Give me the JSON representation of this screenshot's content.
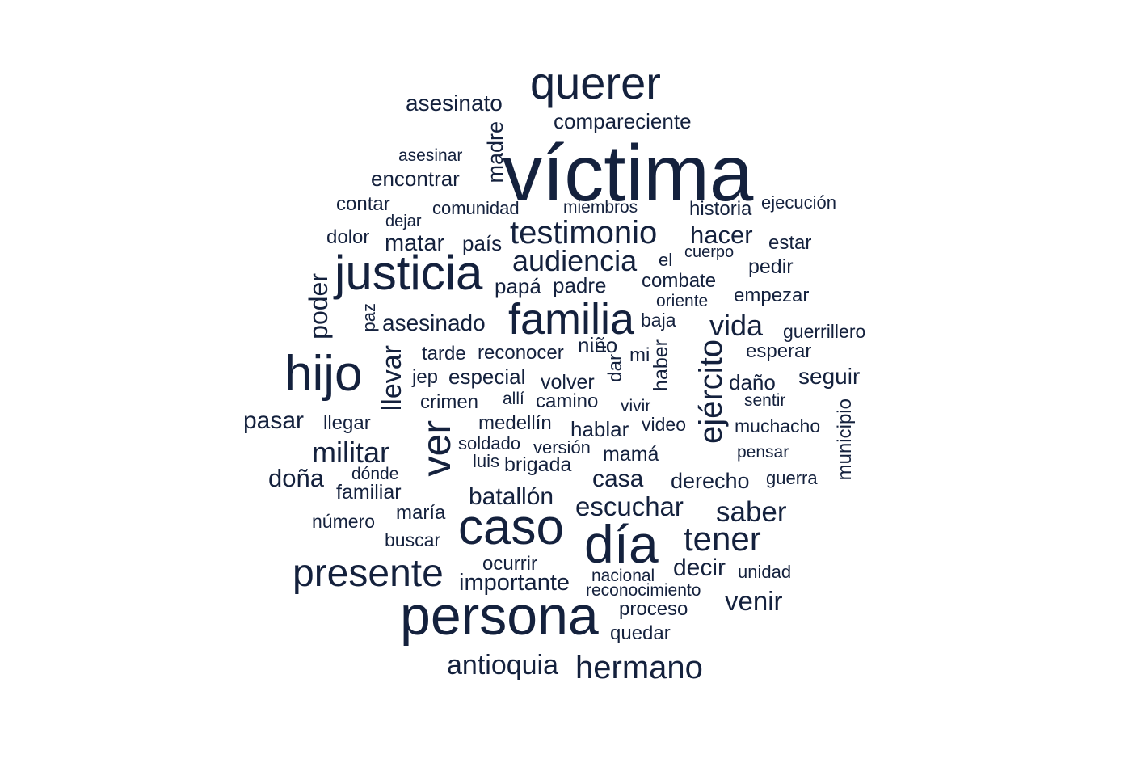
{
  "colors": {
    "background": "#ffffff",
    "text": "#14213d"
  },
  "words": [
    "víctima",
    "persona",
    "querer",
    "caso",
    "día",
    "hijo",
    "justicia",
    "familia",
    "ver",
    "presente",
    "tener",
    "hermano",
    "testimonio",
    "audiencia",
    "ejército",
    "militar",
    "escuchar",
    "saber",
    "antioquia",
    "asesinato",
    "compareciente",
    "madre",
    "asesinar",
    "encontrar",
    "contar",
    "comunidad",
    "miembros",
    "historia",
    "ejecución",
    "dejar",
    "dolor",
    "matar",
    "país",
    "hacer",
    "estar",
    "cuerpo",
    "el",
    "pedir",
    "poder",
    "papá",
    "padre",
    "combate",
    "oriente",
    "empezar",
    "paz",
    "asesinado",
    "baja",
    "vida",
    "guerrillero",
    "niño",
    "ir",
    "dar",
    "haber",
    "mi",
    "tarde",
    "reconocer",
    "esperar",
    "llevar",
    "jep",
    "especial",
    "volver",
    "daño",
    "seguir",
    "crimen",
    "allí",
    "camino",
    "vivir",
    "sentir",
    "pasar",
    "llegar",
    "medellín",
    "hablar",
    "video",
    "muchacho",
    "municipio",
    "soldado",
    "versión",
    "mamá",
    "pensar",
    "luis",
    "brigada",
    "doña",
    "dónde",
    "casa",
    "derecho",
    "guerra",
    "familiar",
    "batallón",
    "número",
    "maría",
    "buscar",
    "decir",
    "ocurrir",
    "importante",
    "nacional",
    "unidad",
    "reconocimiento",
    "venir",
    "proceso",
    "quedar"
  ]
}
